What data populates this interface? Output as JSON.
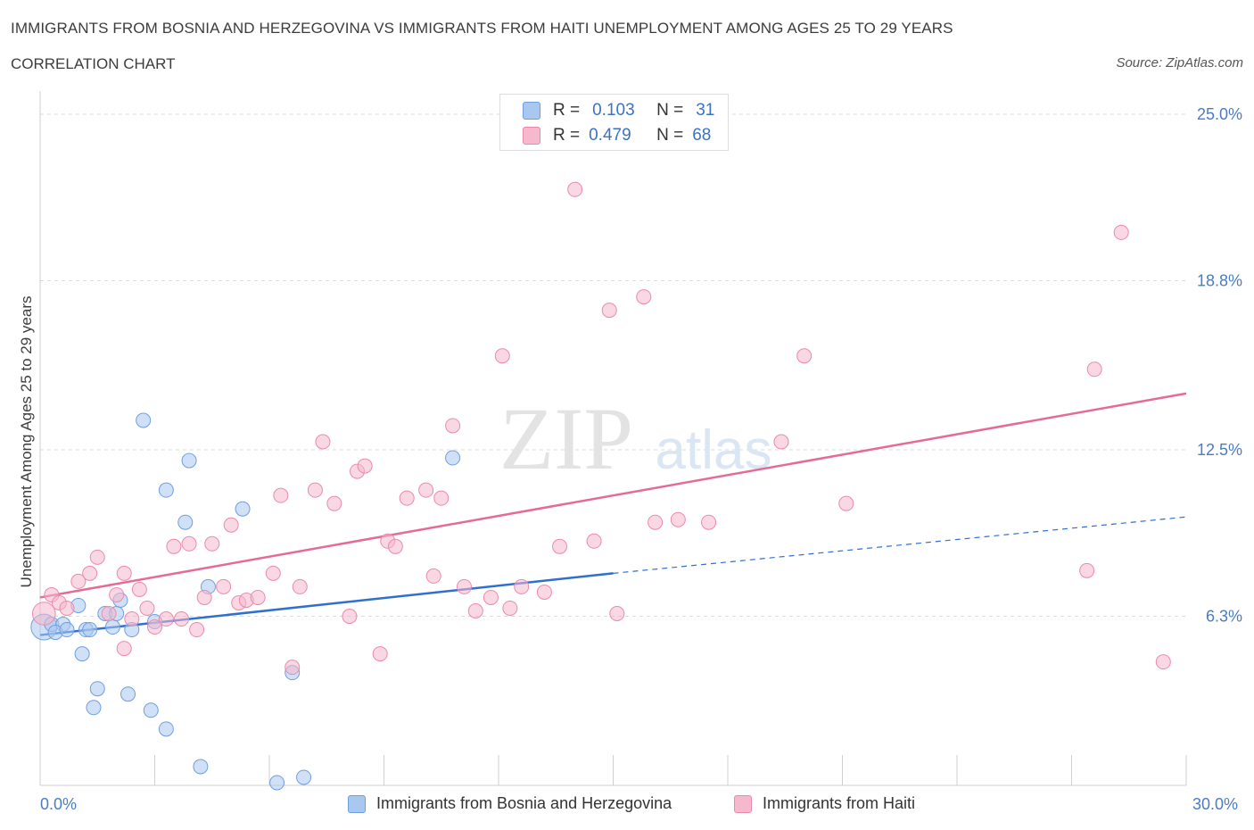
{
  "title": "IMMIGRANTS FROM BOSNIA AND HERZEGOVINA VS IMMIGRANTS FROM HAITI UNEMPLOYMENT AMONG AGES 25 TO 29 YEARS",
  "subtitle": "CORRELATION CHART",
  "source": "Source: ZipAtlas.com",
  "watermark": {
    "zip": "ZIP",
    "atlas": "atlas"
  },
  "legend": {
    "r_label": "R =",
    "n_label": "N =",
    "rows": [
      {
        "r": "0.103",
        "n": "31",
        "color": "#a9c8f0"
      },
      {
        "r": "0.479",
        "n": "68",
        "color": "#f5b8cc"
      }
    ]
  },
  "colors": {
    "blue_fill": "#a9c8f0",
    "blue_stroke": "#6f9ee0",
    "blue_line": "#2f6fd0",
    "pink_fill": "#f5b8cc",
    "pink_stroke": "#ea8aaa",
    "pink_line": "#e56b95",
    "axis_text": "#4a7cc4",
    "grid": "#d8d8d8"
  },
  "chart_data": {
    "type": "scatter",
    "title": "IMMIGRANTS FROM BOSNIA AND HERZEGOVINA VS IMMIGRANTS FROM HAITI UNEMPLOYMENT AMONG AGES 25 TO 29 YEARS",
    "xlabel": "",
    "ylabel": "Unemployment Among Ages 25 to 29 years",
    "xlim": [
      0,
      30
    ],
    "ylim": [
      0,
      25.6
    ],
    "x_tick_labels": [
      "0.0%",
      "30.0%"
    ],
    "y_ticks": [
      6.3,
      12.5,
      18.8,
      25.0
    ],
    "y_tick_labels": [
      "6.3%",
      "12.5%",
      "18.8%",
      "25.0%"
    ],
    "grid": true,
    "legend_position": "top-center",
    "series": [
      {
        "name": "Immigrants from Bosnia and Herzegovina",
        "color": "#a9c8f0",
        "r": 0.103,
        "n": 31,
        "trend": {
          "x0": 0,
          "y0": 5.6,
          "x1": 15,
          "y1": 7.9,
          "dashed_to_x": 30,
          "dashed_to_y": 10.0
        },
        "points": [
          [
            0.1,
            5.9,
            1.8
          ],
          [
            0.3,
            6.0,
            1.0
          ],
          [
            0.6,
            6.0,
            1.0
          ],
          [
            0.4,
            5.7,
            1.0
          ],
          [
            0.7,
            5.8,
            1.0
          ],
          [
            1.0,
            6.7,
            1.0
          ],
          [
            1.1,
            4.9,
            1.0
          ],
          [
            1.2,
            5.8,
            1.0
          ],
          [
            1.3,
            5.8,
            1.0
          ],
          [
            1.5,
            3.6,
            1.0
          ],
          [
            1.4,
            2.9,
            1.0
          ],
          [
            1.7,
            6.4,
            1.0
          ],
          [
            1.9,
            5.9,
            1.0
          ],
          [
            2.0,
            6.4,
            1.0
          ],
          [
            2.1,
            6.9,
            1.0
          ],
          [
            2.3,
            3.4,
            1.0
          ],
          [
            2.4,
            5.8,
            1.0
          ],
          [
            2.7,
            13.6,
            1.0
          ],
          [
            2.9,
            2.8,
            1.0
          ],
          [
            3.0,
            6.1,
            1.0
          ],
          [
            3.3,
            2.1,
            1.0
          ],
          [
            3.3,
            11.0,
            1.0
          ],
          [
            3.8,
            9.8,
            1.0
          ],
          [
            3.9,
            12.1,
            1.0
          ],
          [
            4.2,
            0.7,
            1.0
          ],
          [
            4.4,
            7.4,
            1.0
          ],
          [
            5.3,
            10.3,
            1.0
          ],
          [
            6.2,
            0.1,
            1.0
          ],
          [
            6.6,
            4.2,
            1.0
          ],
          [
            6.9,
            0.3,
            1.0
          ],
          [
            10.8,
            12.2,
            1.0
          ]
        ]
      },
      {
        "name": "Immigrants from Haiti",
        "color": "#f5b8cc",
        "r": 0.479,
        "n": 68,
        "trend": {
          "x0": 0,
          "y0": 7.0,
          "x1": 30,
          "y1": 14.6
        },
        "points": [
          [
            0.1,
            6.4,
            1.6
          ],
          [
            0.3,
            7.1,
            1.0
          ],
          [
            0.5,
            6.8,
            1.0
          ],
          [
            0.7,
            6.6,
            1.0
          ],
          [
            1.0,
            7.6,
            1.0
          ],
          [
            1.3,
            7.9,
            1.0
          ],
          [
            1.5,
            8.5,
            1.0
          ],
          [
            1.8,
            6.4,
            1.0
          ],
          [
            2.0,
            7.1,
            1.0
          ],
          [
            2.2,
            7.9,
            1.0
          ],
          [
            2.2,
            5.1,
            1.0
          ],
          [
            2.4,
            6.2,
            1.0
          ],
          [
            2.6,
            7.3,
            1.0
          ],
          [
            2.8,
            6.6,
            1.0
          ],
          [
            3.0,
            5.9,
            1.0
          ],
          [
            3.3,
            6.2,
            1.0
          ],
          [
            3.5,
            8.9,
            1.0
          ],
          [
            3.7,
            6.2,
            1.0
          ],
          [
            3.9,
            9.0,
            1.0
          ],
          [
            4.1,
            5.8,
            1.0
          ],
          [
            4.3,
            7.0,
            1.0
          ],
          [
            4.5,
            9.0,
            1.0
          ],
          [
            4.8,
            7.4,
            1.0
          ],
          [
            5.0,
            9.7,
            1.0
          ],
          [
            5.2,
            6.8,
            1.0
          ],
          [
            5.4,
            6.9,
            1.0
          ],
          [
            5.7,
            7.0,
            1.0
          ],
          [
            6.1,
            7.9,
            1.0
          ],
          [
            6.3,
            10.8,
            1.0
          ],
          [
            6.6,
            4.4,
            1.0
          ],
          [
            6.8,
            7.4,
            1.0
          ],
          [
            7.2,
            11.0,
            1.0
          ],
          [
            7.4,
            12.8,
            1.0
          ],
          [
            7.7,
            10.5,
            1.0
          ],
          [
            8.1,
            6.3,
            1.0
          ],
          [
            8.3,
            11.7,
            1.0
          ],
          [
            8.5,
            11.9,
            1.0
          ],
          [
            8.9,
            4.9,
            1.0
          ],
          [
            9.1,
            9.1,
            1.0
          ],
          [
            9.3,
            8.9,
            1.0
          ],
          [
            9.6,
            10.7,
            1.0
          ],
          [
            10.1,
            11.0,
            1.0
          ],
          [
            10.3,
            7.8,
            1.0
          ],
          [
            10.5,
            10.7,
            1.0
          ],
          [
            10.8,
            13.4,
            1.0
          ],
          [
            11.1,
            7.4,
            1.0
          ],
          [
            11.4,
            6.5,
            1.0
          ],
          [
            11.8,
            7.0,
            1.0
          ],
          [
            12.1,
            16.0,
            1.0
          ],
          [
            12.3,
            6.6,
            1.0
          ],
          [
            12.6,
            7.4,
            1.0
          ],
          [
            13.2,
            7.2,
            1.0
          ],
          [
            13.6,
            8.9,
            1.0
          ],
          [
            14.0,
            22.2,
            1.0
          ],
          [
            14.5,
            9.1,
            1.0
          ],
          [
            14.9,
            17.7,
            1.0
          ],
          [
            15.1,
            6.4,
            1.0
          ],
          [
            15.8,
            18.2,
            1.0
          ],
          [
            16.1,
            9.8,
            1.0
          ],
          [
            16.7,
            9.9,
            1.0
          ],
          [
            17.5,
            9.8,
            1.0
          ],
          [
            19.4,
            12.8,
            1.0
          ],
          [
            20.0,
            16.0,
            1.0
          ],
          [
            21.1,
            10.5,
            1.0
          ],
          [
            27.4,
            8.0,
            1.0
          ],
          [
            27.6,
            15.5,
            1.0
          ],
          [
            28.3,
            20.6,
            1.0
          ],
          [
            29.4,
            4.6,
            1.0
          ]
        ]
      }
    ]
  }
}
